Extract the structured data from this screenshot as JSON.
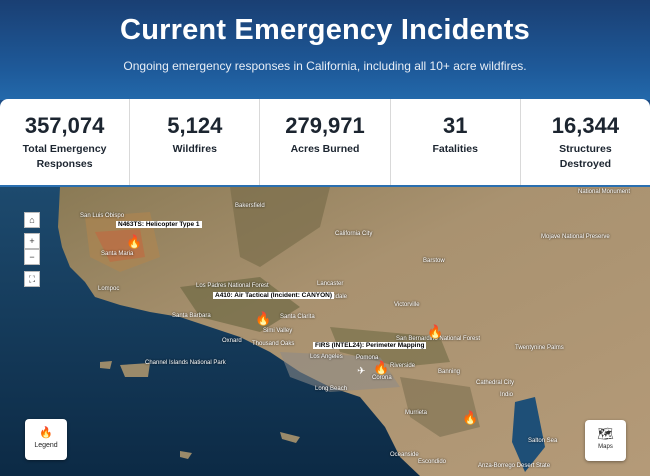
{
  "header": {
    "title": "Current Emergency Incidents",
    "subtitle": "Ongoing emergency responses in California, including all 10+ acre wildfires."
  },
  "stats": [
    {
      "value": "357,074",
      "label": "Total Emergency Responses"
    },
    {
      "value": "5,124",
      "label": "Wildfires"
    },
    {
      "value": "279,971",
      "label": "Acres Burned"
    },
    {
      "value": "31",
      "label": "Fatalities"
    },
    {
      "value": "16,344",
      "label": "Structures Destroyed"
    }
  ],
  "map": {
    "controls": {
      "home": "⌂",
      "zoom_in": "+",
      "zoom_out": "−",
      "fullscreen": "⛶"
    },
    "aircraft_tags": {
      "helicopter": "N463TS: Helicopter Type 1",
      "air_tactical": "A410: Air Tactical (Incident: CANYON)",
      "firis": "FIRS (INTEL24): Perimeter Mapping"
    },
    "places": {
      "bakersfield": "Bakersfield",
      "california_city": "California City",
      "joshua_tree": "Mojave National Preserve",
      "national_monument": "National Monument",
      "barstow": "Barstow",
      "san_luis": "San Luis Obispo",
      "santa_maria": "Santa Maria",
      "lompoc": "Lompoc",
      "los_padres": "Los Padres National Forest",
      "lancaster": "Lancaster",
      "palmdale": "Palmdale",
      "victorville": "Victorville",
      "santa_barbara": "Santa Barbara",
      "santa_clarita": "Santa Clarita",
      "oxnard": "Oxnard",
      "simi_valley": "Simi Valley",
      "thousand_oaks": "Thousand Oaks",
      "san_bernardino": "San Bernardino National Forest",
      "los_angeles": "Los Angeles",
      "pomona": "Pomona",
      "riverside": "Riverside",
      "corona": "Corona",
      "long_beach": "Long Beach",
      "twentynine": "Twentynine Palms",
      "cathedral": "Cathedral City",
      "banning": "Banning",
      "indio": "Indio",
      "channel_islands": "Channel Islands National Park",
      "murrieta": "Murrieta",
      "salton": "Salton Sea",
      "oceanside": "Oceanside",
      "escondido": "Escondido",
      "anza": "Anza-Borrego Desert State"
    },
    "legend_label": "Legend",
    "maps_label": "Maps"
  }
}
